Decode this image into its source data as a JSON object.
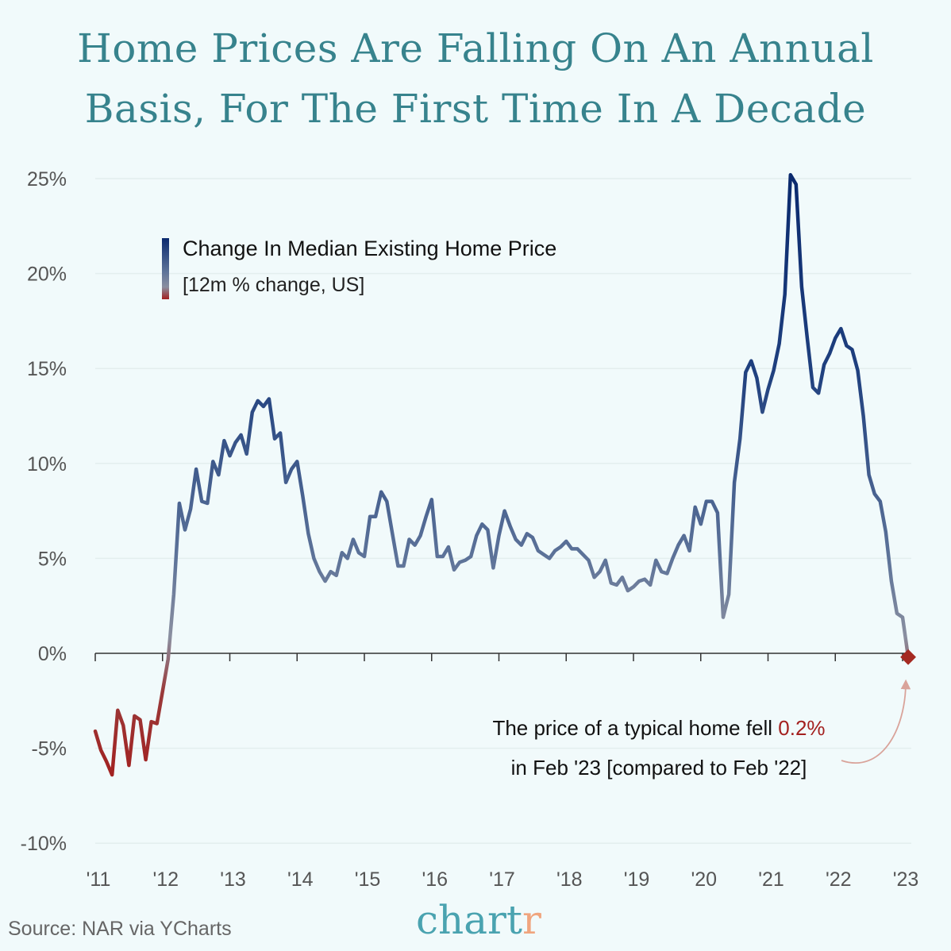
{
  "title_lines": [
    "Home Prices Are Falling On An Annual",
    "Basis, For The First Time In A Decade"
  ],
  "legend": {
    "title": "Change In Median Existing Home Price",
    "subtitle": "[12m % change, US]"
  },
  "annotation": {
    "line1_prefix": "The price of a typical home fell ",
    "line1_highlight": "0.2%",
    "line2": "in Feb '23 [compared to Feb '22]"
  },
  "source": "Source: NAR via YCharts",
  "logo": {
    "main": "chart",
    "accent": "r"
  },
  "colors": {
    "title": "#37838d",
    "positive_high": "#0b2a6e",
    "negative": "#a3201f",
    "highlight": "#a3201f",
    "arrow": "#d9a39a"
  },
  "chart_data": {
    "type": "line",
    "title": "Home Prices Are Falling On An Annual Basis, For The First Time In A Decade",
    "xlabel": "",
    "ylabel": "",
    "x_start": "2011-01",
    "x_frequency": "monthly",
    "x_ticks": [
      "'11",
      "'12",
      "'13",
      "'14",
      "'15",
      "'16",
      "'17",
      "'18",
      "'19",
      "'20",
      "'21",
      "'22",
      "'23"
    ],
    "y_ticks": [
      "25%",
      "20%",
      "15%",
      "10%",
      "5%",
      "0%",
      "-5%",
      "-10%"
    ],
    "y_tick_values": [
      25,
      20,
      15,
      10,
      5,
      0,
      -5,
      -10
    ],
    "ylim": [
      -10,
      25
    ],
    "grid": true,
    "legend_position": "top-left",
    "series": [
      {
        "name": "Change In Median Existing Home Price",
        "values": [
          -4.1,
          -5.1,
          -5.7,
          -6.4,
          -3.0,
          -3.8,
          -5.9,
          -3.3,
          -3.5,
          -5.6,
          -3.6,
          -3.7,
          -2.0,
          -0.3,
          3.1,
          7.9,
          6.5,
          7.6,
          9.7,
          8.0,
          7.9,
          10.1,
          9.4,
          11.2,
          10.4,
          11.1,
          11.5,
          10.5,
          12.7,
          13.3,
          13.0,
          13.4,
          11.3,
          11.6,
          9.0,
          9.7,
          10.1,
          8.3,
          6.3,
          5.0,
          4.3,
          3.8,
          4.3,
          4.1,
          5.3,
          5.0,
          6.0,
          5.3,
          5.1,
          7.2,
          7.2,
          8.5,
          8.0,
          6.3,
          4.6,
          4.6,
          6.0,
          5.7,
          6.2,
          7.2,
          8.1,
          5.1,
          5.1,
          5.6,
          4.4,
          4.8,
          4.9,
          5.1,
          6.2,
          6.8,
          6.5,
          4.5,
          6.2,
          7.5,
          6.7,
          6.0,
          5.7,
          6.3,
          6.1,
          5.4,
          5.2,
          5.0,
          5.4,
          5.6,
          5.9,
          5.5,
          5.5,
          5.2,
          4.9,
          4.0,
          4.3,
          4.9,
          3.7,
          3.6,
          4.0,
          3.3,
          3.5,
          3.8,
          3.9,
          3.6,
          4.9,
          4.3,
          4.2,
          5.0,
          5.7,
          6.2,
          5.4,
          7.7,
          6.8,
          8.0,
          8.0,
          7.4,
          1.9,
          3.1,
          9.0,
          11.3,
          14.8,
          15.4,
          14.5,
          12.7,
          13.9,
          14.9,
          16.3,
          18.9,
          25.2,
          24.7,
          19.3,
          16.6,
          14.0,
          13.7,
          15.2,
          15.8,
          16.6,
          17.1,
          16.2,
          16.0,
          14.9,
          12.5,
          9.4,
          8.4,
          8.0,
          6.4,
          3.8,
          2.1,
          1.9,
          -0.2
        ]
      }
    ],
    "annotation": "The price of a typical home fell 0.2% in Feb '23 [compared to Feb '22]"
  }
}
